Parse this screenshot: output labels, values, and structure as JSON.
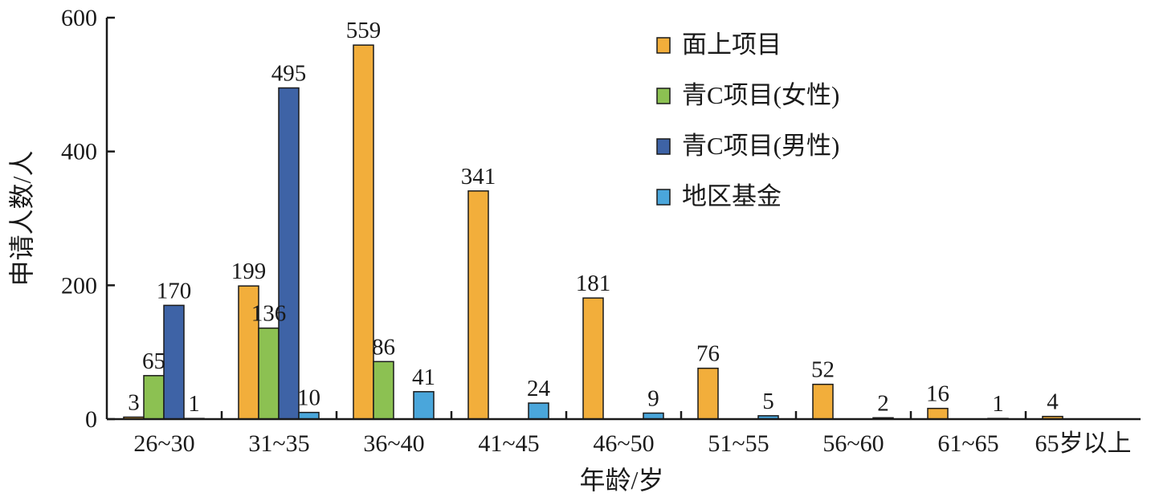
{
  "chart_data": {
    "type": "bar",
    "categories": [
      "26~30",
      "31~35",
      "36~40",
      "41~45",
      "46~50",
      "51~55",
      "56~60",
      "61~65",
      "65岁以上"
    ],
    "series": [
      {
        "name": "面上项目",
        "color": "#F2AE3B",
        "values": [
          3,
          199,
          559,
          341,
          181,
          76,
          52,
          16,
          4
        ]
      },
      {
        "name": "青C项目(女性)",
        "color": "#8CC152",
        "values": [
          65,
          136,
          86,
          null,
          null,
          null,
          null,
          null,
          null
        ]
      },
      {
        "name": "青C项目(男性)",
        "color": "#3E63A6",
        "values": [
          170,
          495,
          null,
          null,
          null,
          null,
          null,
          null,
          null
        ]
      },
      {
        "name": "地区基金",
        "color": "#4AA6DB",
        "values": [
          1,
          10,
          41,
          24,
          9,
          5,
          2,
          1,
          null
        ]
      }
    ],
    "xlabel": "年龄/岁",
    "ylabel": "申请人数/人",
    "ylim": [
      0,
      600
    ],
    "yticks": [
      0,
      200,
      400,
      600
    ],
    "grid": false,
    "legend_position": "top-right"
  }
}
